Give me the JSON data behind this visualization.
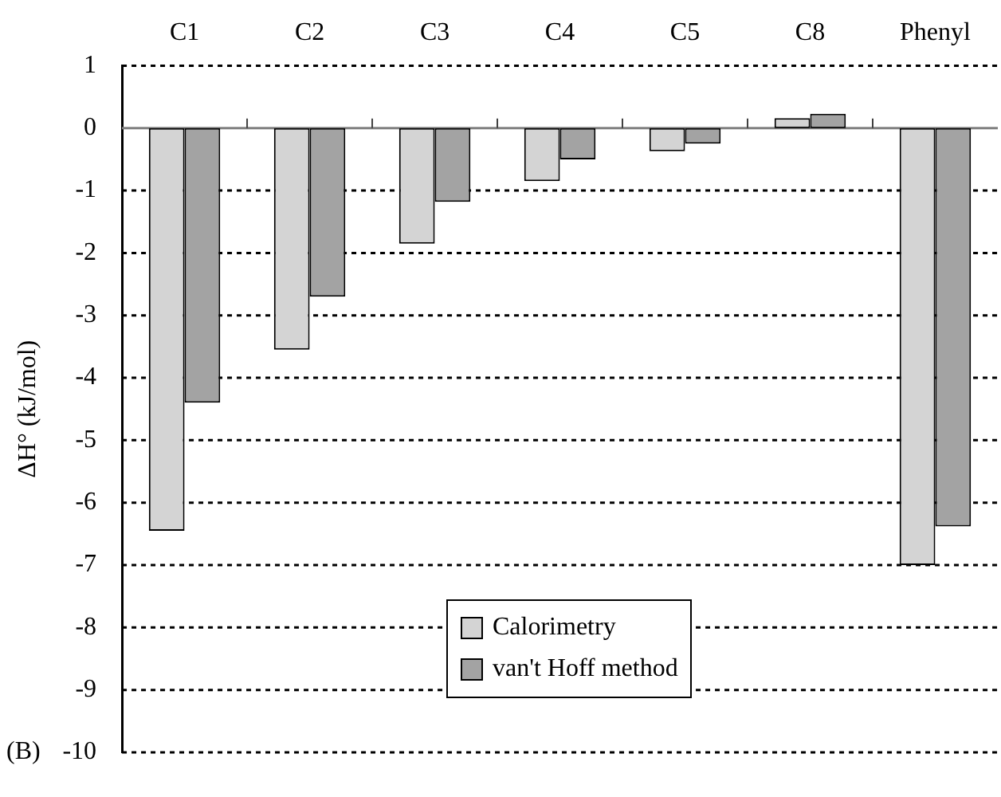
{
  "chart_data": {
    "type": "bar",
    "categories": [
      "C1",
      "C2",
      "C3",
      "C4",
      "C5",
      "C8",
      "Phenyl"
    ],
    "series": [
      {
        "name": "Calorimetry",
        "color": "#d4d4d4",
        "values": [
          -6.45,
          -3.55,
          -1.85,
          -0.85,
          -0.37,
          0.16,
          -7.0
        ]
      },
      {
        "name": "van't Hoff method",
        "color": "#a3a3a3",
        "values": [
          -4.4,
          -2.7,
          -1.18,
          -0.5,
          -0.25,
          0.23,
          -6.38
        ]
      }
    ],
    "ylabel": "ΔH° (kJ/mol)",
    "ylim": [
      -10,
      1
    ],
    "yticks": [
      1,
      0,
      -1,
      -2,
      -3,
      -4,
      -5,
      -6,
      -7,
      -8,
      -9,
      -10
    ],
    "annotations": [
      "(B)"
    ],
    "grid": "y",
    "legend": "bottom"
  }
}
